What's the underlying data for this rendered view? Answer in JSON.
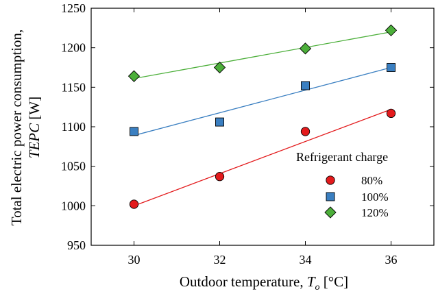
{
  "chart_data": {
    "type": "scatter",
    "xlabel": "Outdoor temperature, ",
    "xlabel_symbol": "T",
    "xlabel_subscript": "o",
    "xlabel_unit": " [°C]",
    "ylabel_line1": "Total electric power consumption,",
    "ylabel_line2_symbol": "TEPC",
    "ylabel_line2_unit": " [W]",
    "xlim": [
      29,
      37
    ],
    "ylim": [
      950,
      1250
    ],
    "xticks": [
      30,
      32,
      34,
      36
    ],
    "yticks": [
      950,
      1000,
      1050,
      1100,
      1150,
      1200,
      1250
    ],
    "grid": false,
    "legend": {
      "title": "Refrigerant charge",
      "placement": "lower-right"
    },
    "series": [
      {
        "name": "80%",
        "marker": "circle",
        "color": "#e31a1c",
        "x": [
          30,
          32,
          34,
          36
        ],
        "y": [
          1002,
          1037,
          1094,
          1117
        ],
        "fit": {
          "x": [
            30,
            36
          ],
          "y": [
            1000,
            1122
          ]
        }
      },
      {
        "name": "100%",
        "marker": "square",
        "color": "#3a7fc1",
        "x": [
          30,
          32,
          34,
          36
        ],
        "y": [
          1094,
          1106,
          1152,
          1175
        ],
        "fit": {
          "x": [
            30,
            36
          ],
          "y": [
            1089,
            1175
          ]
        }
      },
      {
        "name": "120%",
        "marker": "diamond",
        "color": "#4caf3a",
        "x": [
          30,
          32,
          34,
          36
        ],
        "y": [
          1164,
          1175,
          1199,
          1222
        ],
        "fit": {
          "x": [
            30,
            36
          ],
          "y": [
            1161,
            1220
          ]
        }
      }
    ]
  }
}
